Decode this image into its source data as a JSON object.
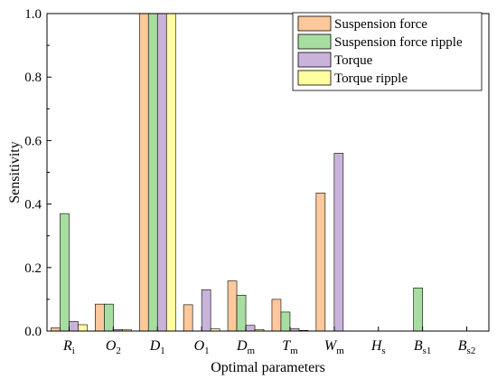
{
  "chart_data": {
    "type": "bar",
    "ylabel": "Sensitivity",
    "xlabel": "Optimal parameters",
    "ylim": [
      0,
      1.0
    ],
    "yticks": [
      "0.0",
      "0.2",
      "0.4",
      "0.6",
      "0.8",
      "1.0"
    ],
    "legend_position": "top-right",
    "categories": [
      {
        "main": "R",
        "sub": "i"
      },
      {
        "main": "O",
        "sub": "2"
      },
      {
        "main": "D",
        "sub": "1"
      },
      {
        "main": "O",
        "sub": "1"
      },
      {
        "main": "D",
        "sub": "m"
      },
      {
        "main": "T",
        "sub": "m"
      },
      {
        "main": "W",
        "sub": "m"
      },
      {
        "main": "H",
        "sub": "s"
      },
      {
        "main": "B",
        "sub": "s1"
      },
      {
        "main": "B",
        "sub": "s2"
      }
    ],
    "series": [
      {
        "name": "Suspension force",
        "color": "#FDC89B",
        "values": [
          0.01,
          0.085,
          1.0,
          0.083,
          0.158,
          0.1,
          0.435,
          0.0,
          0.0,
          0.0
        ]
      },
      {
        "name": "Suspension force ripple",
        "color": "#A8DDA2",
        "values": [
          0.37,
          0.085,
          1.0,
          0.0,
          0.113,
          0.06,
          0.0,
          0.0,
          0.136,
          0.0
        ]
      },
      {
        "name": "Torque",
        "color": "#C9B3DB",
        "values": [
          0.03,
          0.005,
          1.0,
          0.13,
          0.018,
          0.008,
          0.56,
          0.0,
          0.0,
          0.0
        ]
      },
      {
        "name": "Torque ripple",
        "color": "#FFFFA0",
        "values": [
          0.02,
          0.005,
          1.0,
          0.007,
          0.005,
          0.002,
          0.0,
          0.0,
          0.0,
          0.0
        ]
      }
    ]
  }
}
